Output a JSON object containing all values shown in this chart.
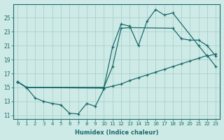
{
  "xlabel": "Humidex (Indice chaleur)",
  "background_color": "#ceeae6",
  "grid_color": "#afd4d0",
  "line_color": "#1a6b6b",
  "xlim": [
    -0.5,
    23.5
  ],
  "ylim": [
    10.5,
    27.0
  ],
  "xticks": [
    0,
    1,
    2,
    3,
    4,
    5,
    6,
    7,
    8,
    9,
    10,
    11,
    12,
    13,
    14,
    15,
    16,
    17,
    18,
    19,
    20,
    21,
    22,
    23
  ],
  "yticks": [
    11,
    13,
    15,
    17,
    19,
    21,
    23,
    25
  ],
  "series_sharp": {
    "x": [
      0,
      1,
      10,
      11,
      12,
      13,
      14,
      15,
      16,
      17,
      18,
      21,
      22,
      23
    ],
    "y": [
      15.8,
      15.0,
      15.0,
      20.8,
      24.1,
      23.8,
      21.0,
      24.5,
      26.2,
      25.4,
      25.7,
      21.0,
      19.5,
      19.8
    ]
  },
  "series_medium": {
    "x": [
      0,
      1,
      10,
      11,
      12,
      13,
      18,
      19,
      20,
      21,
      22,
      23
    ],
    "y": [
      15.8,
      15.0,
      15.0,
      18.0,
      23.5,
      23.6,
      23.5,
      22.0,
      21.8,
      21.8,
      21.0,
      19.5
    ]
  },
  "series_gentle": {
    "x": [
      0,
      1,
      10,
      11,
      12,
      13,
      14,
      15,
      16,
      17,
      18,
      19,
      20,
      21,
      22,
      23
    ],
    "y": [
      15.8,
      15.0,
      14.9,
      15.2,
      15.5,
      16.0,
      16.4,
      16.8,
      17.2,
      17.6,
      18.0,
      18.4,
      18.8,
      19.2,
      19.6,
      18.0
    ]
  },
  "series_jagged": {
    "x": [
      0,
      1,
      2,
      3,
      4,
      5,
      6,
      7,
      8,
      9,
      10
    ],
    "y": [
      15.8,
      15.0,
      13.5,
      13.0,
      12.7,
      12.5,
      11.3,
      11.2,
      12.7,
      12.3,
      14.8
    ]
  },
  "series_jagged2": {
    "x": [
      7,
      8,
      9
    ],
    "y": [
      12.8,
      11.5,
      12.3
    ]
  }
}
